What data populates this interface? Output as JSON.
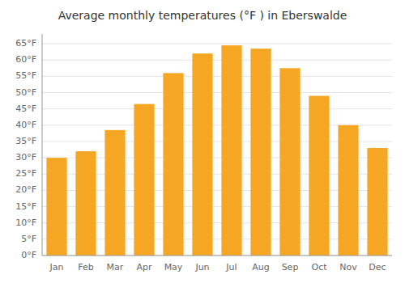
{
  "chart_data": {
    "type": "bar",
    "title": "Average monthly temperatures (°F ) in Eberswalde",
    "categories": [
      "Jan",
      "Feb",
      "Mar",
      "Apr",
      "May",
      "Jun",
      "Jul",
      "Aug",
      "Sep",
      "Oct",
      "Nov",
      "Dec"
    ],
    "values": [
      30.0,
      32.0,
      38.5,
      46.5,
      56.0,
      62.0,
      64.5,
      63.5,
      57.5,
      49.0,
      40.0,
      33.0
    ],
    "color": "#F5A623",
    "ylim": [
      0,
      68
    ],
    "yticks": [
      {
        "value": 0,
        "label": "0°F"
      },
      {
        "value": 5,
        "label": "5°F"
      },
      {
        "value": 10,
        "label": "10°F"
      },
      {
        "value": 15,
        "label": "15°F"
      },
      {
        "value": 20,
        "label": "20°F"
      },
      {
        "value": 25,
        "label": "25°F"
      },
      {
        "value": 30,
        "label": "30°F"
      },
      {
        "value": 35,
        "label": "35°F"
      },
      {
        "value": 40,
        "label": "40°F"
      },
      {
        "value": 45,
        "label": "45°F"
      },
      {
        "value": 50,
        "label": "50°F"
      },
      {
        "value": 55,
        "label": "55°F"
      },
      {
        "value": 60,
        "label": "60°F"
      },
      {
        "value": 65,
        "label": "65°F"
      }
    ],
    "grid": true
  }
}
